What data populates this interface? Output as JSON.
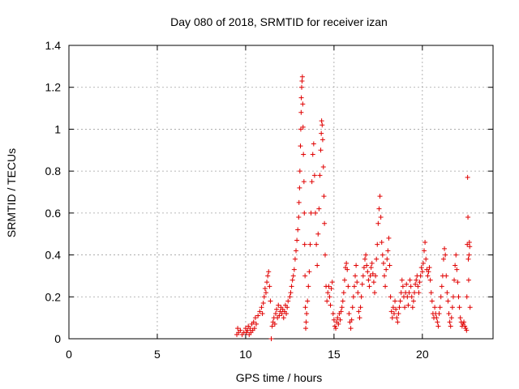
{
  "chart_data": {
    "type": "scatter",
    "title": "Day 080 of 2018, SRMTID for receiver izan",
    "xlabel": "GPS time / hours",
    "ylabel": "SRMTID / TECUs",
    "xlim": [
      0,
      24
    ],
    "ylim": [
      0,
      1.4
    ],
    "x_ticks": [
      0,
      5,
      10,
      15,
      20
    ],
    "y_ticks": [
      0,
      0.2,
      0.4,
      0.6,
      0.8,
      1.0,
      1.2,
      1.4
    ],
    "x_tick_labels": [
      "0",
      "5",
      "10",
      "15",
      "20"
    ],
    "y_tick_labels": [
      "0",
      "0.2",
      "0.4",
      "0.6",
      "0.8",
      "1",
      "1.2",
      "1.4"
    ],
    "grid": true,
    "marker": "+",
    "marker_color": "#e00000",
    "series": [
      {
        "name": "SRMTID",
        "points": [
          [
            9.5,
            0.02
          ],
          [
            9.55,
            0.05
          ],
          [
            9.6,
            0.03
          ],
          [
            9.7,
            0.04
          ],
          [
            9.8,
            0.02
          ],
          [
            9.9,
            0.03
          ],
          [
            10.0,
            0.05
          ],
          [
            10.05,
            0.03
          ],
          [
            10.1,
            0.04
          ],
          [
            10.15,
            0.06
          ],
          [
            10.2,
            0.02
          ],
          [
            10.25,
            0.05
          ],
          [
            10.3,
            0.03
          ],
          [
            10.35,
            0.07
          ],
          [
            10.4,
            0.04
          ],
          [
            10.45,
            0.08
          ],
          [
            10.5,
            0.05
          ],
          [
            10.55,
            0.1
          ],
          [
            10.6,
            0.07
          ],
          [
            10.7,
            0.11
          ],
          [
            10.8,
            0.13
          ],
          [
            10.9,
            0.15
          ],
          [
            10.95,
            0.12
          ],
          [
            11.0,
            0.17
          ],
          [
            11.05,
            0.2
          ],
          [
            11.1,
            0.24
          ],
          [
            11.15,
            0.22
          ],
          [
            11.2,
            0.27
          ],
          [
            11.25,
            0.3
          ],
          [
            11.3,
            0.32
          ],
          [
            11.35,
            0.25
          ],
          [
            11.4,
            0.18
          ],
          [
            11.45,
            0.0
          ],
          [
            11.5,
            0.06
          ],
          [
            11.55,
            0.08
          ],
          [
            11.6,
            0.1
          ],
          [
            11.65,
            0.07
          ],
          [
            11.7,
            0.12
          ],
          [
            11.75,
            0.14
          ],
          [
            11.8,
            0.1
          ],
          [
            11.85,
            0.16
          ],
          [
            11.9,
            0.11
          ],
          [
            11.95,
            0.13
          ],
          [
            12.0,
            0.15
          ],
          [
            12.05,
            0.12
          ],
          [
            12.1,
            0.14
          ],
          [
            12.15,
            0.1
          ],
          [
            12.2,
            0.13
          ],
          [
            12.25,
            0.16
          ],
          [
            12.3,
            0.12
          ],
          [
            12.35,
            0.15
          ],
          [
            12.4,
            0.18
          ],
          [
            12.5,
            0.2
          ],
          [
            12.55,
            0.22
          ],
          [
            12.6,
            0.25
          ],
          [
            12.65,
            0.28
          ],
          [
            12.7,
            0.3
          ],
          [
            12.75,
            0.33
          ],
          [
            12.8,
            0.38
          ],
          [
            12.85,
            0.42
          ],
          [
            12.9,
            0.47
          ],
          [
            12.95,
            0.52
          ],
          [
            13.0,
            0.58
          ],
          [
            13.02,
            0.65
          ],
          [
            13.05,
            0.72
          ],
          [
            13.07,
            0.8
          ],
          [
            13.1,
            0.92
          ],
          [
            13.12,
            1.0
          ],
          [
            13.14,
            1.08
          ],
          [
            13.15,
            1.15
          ],
          [
            13.17,
            1.2
          ],
          [
            13.19,
            1.23
          ],
          [
            13.21,
            1.25
          ],
          [
            13.23,
            1.12
          ],
          [
            13.25,
            1.01
          ],
          [
            13.27,
            0.88
          ],
          [
            13.3,
            0.75
          ],
          [
            13.32,
            0.6
          ],
          [
            13.34,
            0.45
          ],
          [
            13.36,
            0.3
          ],
          [
            13.38,
            0.15
          ],
          [
            13.4,
            0.05
          ],
          [
            13.42,
            0.08
          ],
          [
            13.45,
            0.12
          ],
          [
            13.5,
            0.18
          ],
          [
            13.55,
            0.25
          ],
          [
            13.6,
            0.32
          ],
          [
            13.65,
            0.45
          ],
          [
            13.7,
            0.6
          ],
          [
            13.75,
            0.75
          ],
          [
            13.8,
            0.88
          ],
          [
            13.85,
            0.93
          ],
          [
            13.9,
            0.78
          ],
          [
            13.95,
            0.6
          ],
          [
            14.0,
            0.45
          ],
          [
            14.05,
            0.35
          ],
          [
            14.1,
            0.5
          ],
          [
            14.15,
            0.62
          ],
          [
            14.2,
            0.78
          ],
          [
            14.25,
            0.9
          ],
          [
            14.28,
            0.98
          ],
          [
            14.3,
            1.04
          ],
          [
            14.33,
            1.02
          ],
          [
            14.36,
            0.95
          ],
          [
            14.4,
            0.82
          ],
          [
            14.43,
            0.68
          ],
          [
            14.46,
            0.55
          ],
          [
            14.5,
            0.4
          ],
          [
            14.55,
            0.25
          ],
          [
            14.6,
            0.18
          ],
          [
            14.65,
            0.22
          ],
          [
            14.7,
            0.25
          ],
          [
            14.75,
            0.2
          ],
          [
            14.8,
            0.16
          ],
          [
            14.85,
            0.24
          ],
          [
            14.9,
            0.27
          ],
          [
            14.95,
            0.12
          ],
          [
            15.0,
            0.09
          ],
          [
            15.05,
            0.06
          ],
          [
            15.1,
            0.05
          ],
          [
            15.15,
            0.08
          ],
          [
            15.2,
            0.1
          ],
          [
            15.25,
            0.07
          ],
          [
            15.3,
            0.12
          ],
          [
            15.35,
            0.09
          ],
          [
            15.4,
            0.13
          ],
          [
            15.45,
            0.15
          ],
          [
            15.5,
            0.18
          ],
          [
            15.55,
            0.22
          ],
          [
            15.6,
            0.28
          ],
          [
            15.65,
            0.34
          ],
          [
            15.7,
            0.36
          ],
          [
            15.75,
            0.33
          ],
          [
            15.8,
            0.25
          ],
          [
            15.85,
            0.12
          ],
          [
            15.9,
            0.08
          ],
          [
            15.95,
            0.05
          ],
          [
            16.0,
            0.09
          ],
          [
            16.05,
            0.15
          ],
          [
            16.1,
            0.2
          ],
          [
            16.15,
            0.25
          ],
          [
            16.2,
            0.3
          ],
          [
            16.25,
            0.35
          ],
          [
            16.3,
            0.27
          ],
          [
            16.35,
            0.22
          ],
          [
            16.4,
            0.13
          ],
          [
            16.45,
            0.1
          ],
          [
            16.5,
            0.15
          ],
          [
            16.55,
            0.2
          ],
          [
            16.6,
            0.26
          ],
          [
            16.65,
            0.3
          ],
          [
            16.7,
            0.34
          ],
          [
            16.75,
            0.38
          ],
          [
            16.8,
            0.4
          ],
          [
            16.85,
            0.35
          ],
          [
            16.9,
            0.32
          ],
          [
            16.95,
            0.28
          ],
          [
            17.0,
            0.25
          ],
          [
            17.05,
            0.3
          ],
          [
            17.1,
            0.34
          ],
          [
            17.15,
            0.36
          ],
          [
            17.2,
            0.31
          ],
          [
            17.25,
            0.27
          ],
          [
            17.3,
            0.22
          ],
          [
            17.35,
            0.3
          ],
          [
            17.4,
            0.38
          ],
          [
            17.45,
            0.45
          ],
          [
            17.5,
            0.55
          ],
          [
            17.55,
            0.62
          ],
          [
            17.6,
            0.68
          ],
          [
            17.65,
            0.58
          ],
          [
            17.7,
            0.46
          ],
          [
            17.75,
            0.4
          ],
          [
            17.8,
            0.36
          ],
          [
            17.85,
            0.3
          ],
          [
            17.9,
            0.25
          ],
          [
            17.95,
            0.33
          ],
          [
            18.0,
            0.38
          ],
          [
            18.05,
            0.42
          ],
          [
            18.1,
            0.48
          ],
          [
            18.15,
            0.35
          ],
          [
            18.2,
            0.2
          ],
          [
            18.25,
            0.13
          ],
          [
            18.3,
            0.1
          ],
          [
            18.35,
            0.15
          ],
          [
            18.4,
            0.12
          ],
          [
            18.45,
            0.18
          ],
          [
            18.5,
            0.14
          ],
          [
            18.55,
            0.1
          ],
          [
            18.6,
            0.08
          ],
          [
            18.65,
            0.12
          ],
          [
            18.7,
            0.15
          ],
          [
            18.75,
            0.18
          ],
          [
            18.8,
            0.22
          ],
          [
            18.85,
            0.28
          ],
          [
            18.9,
            0.25
          ],
          [
            18.95,
            0.2
          ],
          [
            19.0,
            0.15
          ],
          [
            19.05,
            0.22
          ],
          [
            19.1,
            0.26
          ],
          [
            19.15,
            0.2
          ],
          [
            19.2,
            0.16
          ],
          [
            19.25,
            0.22
          ],
          [
            19.3,
            0.28
          ],
          [
            19.35,
            0.25
          ],
          [
            19.4,
            0.2
          ],
          [
            19.45,
            0.15
          ],
          [
            19.5,
            0.18
          ],
          [
            19.55,
            0.22
          ],
          [
            19.6,
            0.26
          ],
          [
            19.65,
            0.28
          ],
          [
            19.7,
            0.3
          ],
          [
            19.75,
            0.25
          ],
          [
            19.8,
            0.22
          ],
          [
            19.85,
            0.27
          ],
          [
            19.9,
            0.3
          ],
          [
            19.95,
            0.34
          ],
          [
            20.0,
            0.32
          ],
          [
            20.05,
            0.36
          ],
          [
            20.1,
            0.42
          ],
          [
            20.15,
            0.46
          ],
          [
            20.2,
            0.38
          ],
          [
            20.25,
            0.33
          ],
          [
            20.3,
            0.3
          ],
          [
            20.35,
            0.32
          ],
          [
            20.4,
            0.34
          ],
          [
            20.45,
            0.28
          ],
          [
            20.5,
            0.22
          ],
          [
            20.55,
            0.18
          ],
          [
            20.6,
            0.12
          ],
          [
            20.65,
            0.1
          ],
          [
            20.7,
            0.15
          ],
          [
            20.75,
            0.12
          ],
          [
            20.8,
            0.1
          ],
          [
            20.85,
            0.08
          ],
          [
            20.9,
            0.06
          ],
          [
            20.95,
            0.12
          ],
          [
            21.0,
            0.15
          ],
          [
            21.05,
            0.2
          ],
          [
            21.1,
            0.25
          ],
          [
            21.15,
            0.3
          ],
          [
            21.2,
            0.38
          ],
          [
            21.25,
            0.43
          ],
          [
            21.3,
            0.4
          ],
          [
            21.35,
            0.3
          ],
          [
            21.4,
            0.22
          ],
          [
            21.45,
            0.18
          ],
          [
            21.5,
            0.12
          ],
          [
            21.55,
            0.08
          ],
          [
            21.6,
            0.06
          ],
          [
            21.65,
            0.1
          ],
          [
            21.7,
            0.15
          ],
          [
            21.75,
            0.2
          ],
          [
            21.8,
            0.28
          ],
          [
            21.85,
            0.35
          ],
          [
            21.9,
            0.4
          ],
          [
            21.95,
            0.33
          ],
          [
            22.0,
            0.27
          ],
          [
            22.05,
            0.2
          ],
          [
            22.1,
            0.15
          ],
          [
            22.15,
            0.1
          ],
          [
            22.2,
            0.08
          ],
          [
            22.25,
            0.06
          ],
          [
            22.3,
            0.07
          ],
          [
            22.35,
            0.08
          ],
          [
            22.4,
            0.06
          ],
          [
            22.45,
            0.05
          ],
          [
            22.5,
            0.04
          ],
          [
            22.52,
            0.2
          ],
          [
            22.54,
            0.45
          ],
          [
            22.56,
            0.77
          ],
          [
            22.58,
            0.58
          ],
          [
            22.6,
            0.38
          ],
          [
            22.62,
            0.28
          ],
          [
            22.64,
            0.4
          ],
          [
            22.66,
            0.46
          ],
          [
            22.68,
            0.44
          ],
          [
            22.7,
            0.15
          ]
        ]
      }
    ]
  }
}
